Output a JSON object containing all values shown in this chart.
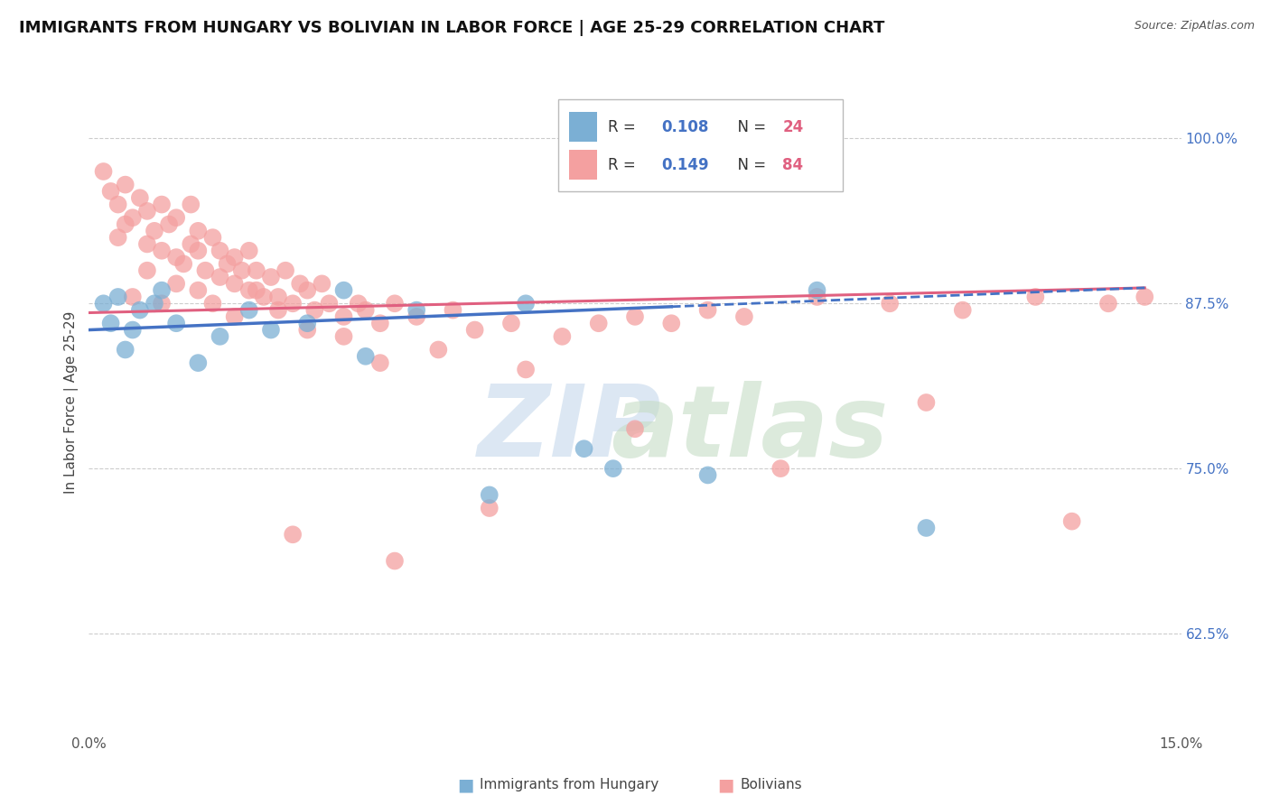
{
  "title": "IMMIGRANTS FROM HUNGARY VS BOLIVIAN IN LABOR FORCE | AGE 25-29 CORRELATION CHART",
  "source": "Source: ZipAtlas.com",
  "ylabel": "In Labor Force | Age 25-29",
  "xlim": [
    0.0,
    15.0
  ],
  "ylim": [
    55.0,
    105.0
  ],
  "x_ticks": [
    0.0,
    15.0
  ],
  "x_tick_labels": [
    "0.0%",
    "15.0%"
  ],
  "y_ticks": [
    62.5,
    75.0,
    87.5,
    100.0
  ],
  "y_tick_labels": [
    "62.5%",
    "75.0%",
    "87.5%",
    "100.0%"
  ],
  "hungary_color": "#7bafd4",
  "bolivia_color": "#f4a0a0",
  "hungary_line_color": "#4472c4",
  "bolivia_line_color": "#e06080",
  "grid_color": "#cccccc",
  "background_color": "#ffffff",
  "hungary_scatter_x": [
    0.2,
    0.3,
    0.4,
    0.5,
    0.6,
    0.7,
    0.9,
    1.0,
    1.2,
    1.5,
    1.8,
    2.2,
    2.5,
    3.0,
    3.8,
    4.5,
    6.0,
    7.2,
    8.5,
    10.0,
    11.5,
    6.8,
    3.5,
    5.5
  ],
  "hungary_scatter_y": [
    87.5,
    86.0,
    88.0,
    84.0,
    85.5,
    87.0,
    87.5,
    88.5,
    86.0,
    83.0,
    85.0,
    87.0,
    85.5,
    86.0,
    83.5,
    87.0,
    87.5,
    75.0,
    74.5,
    88.5,
    70.5,
    76.5,
    88.5,
    73.0
  ],
  "bolivia_scatter_x": [
    0.2,
    0.3,
    0.4,
    0.5,
    0.5,
    0.6,
    0.7,
    0.8,
    0.8,
    0.9,
    1.0,
    1.0,
    1.1,
    1.2,
    1.2,
    1.3,
    1.4,
    1.4,
    1.5,
    1.5,
    1.6,
    1.7,
    1.8,
    1.8,
    1.9,
    2.0,
    2.0,
    2.1,
    2.2,
    2.2,
    2.3,
    2.4,
    2.5,
    2.6,
    2.7,
    2.8,
    2.9,
    3.0,
    3.1,
    3.2,
    3.3,
    3.5,
    3.7,
    3.8,
    4.0,
    4.2,
    4.5,
    5.0,
    5.3,
    5.8,
    6.5,
    7.0,
    7.5,
    8.0,
    8.5,
    9.0,
    10.0,
    11.0,
    12.0,
    13.0,
    14.0,
    14.5,
    0.4,
    0.6,
    0.8,
    1.0,
    1.2,
    1.5,
    1.7,
    2.0,
    2.3,
    2.6,
    3.0,
    3.5,
    4.0,
    4.8,
    6.0,
    7.5,
    9.5,
    11.5,
    13.5,
    5.5,
    2.8,
    4.2
  ],
  "bolivia_scatter_y": [
    97.5,
    96.0,
    95.0,
    93.5,
    96.5,
    94.0,
    95.5,
    92.0,
    94.5,
    93.0,
    91.5,
    95.0,
    93.5,
    91.0,
    94.0,
    90.5,
    92.0,
    95.0,
    91.5,
    93.0,
    90.0,
    92.5,
    89.5,
    91.5,
    90.5,
    89.0,
    91.0,
    90.0,
    88.5,
    91.5,
    90.0,
    88.0,
    89.5,
    88.0,
    90.0,
    87.5,
    89.0,
    88.5,
    87.0,
    89.0,
    87.5,
    86.5,
    87.5,
    87.0,
    86.0,
    87.5,
    86.5,
    87.0,
    85.5,
    86.0,
    85.0,
    86.0,
    86.5,
    86.0,
    87.0,
    86.5,
    88.0,
    87.5,
    87.0,
    88.0,
    87.5,
    88.0,
    92.5,
    88.0,
    90.0,
    87.5,
    89.0,
    88.5,
    87.5,
    86.5,
    88.5,
    87.0,
    85.5,
    85.0,
    83.0,
    84.0,
    82.5,
    78.0,
    75.0,
    80.0,
    71.0,
    72.0,
    70.0,
    68.0
  ],
  "hungary_trendline_x0": 0.0,
  "hungary_trendline_x_solid_end": 8.0,
  "hungary_trendline_x_dash_end": 14.5,
  "hungary_trendline_y0": 85.5,
  "hungary_trendline_slope": 0.22,
  "bolivia_trendline_x0": 0.0,
  "bolivia_trendline_x_end": 14.5,
  "bolivia_trendline_y0": 86.8,
  "bolivia_trendline_slope": 0.13,
  "title_fontsize": 13,
  "tick_fontsize": 11,
  "axis_label_fontsize": 11,
  "source_fontsize": 9
}
